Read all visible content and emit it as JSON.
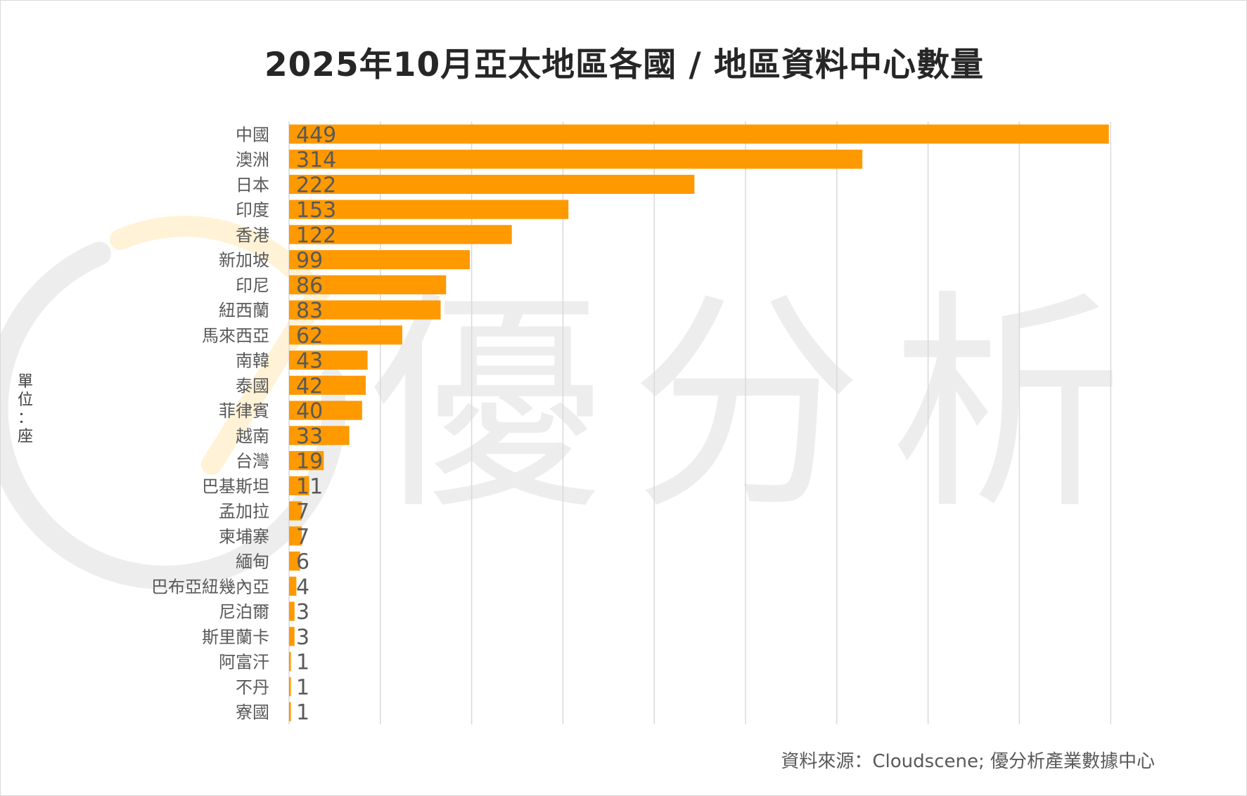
{
  "colors": {
    "bar": "#FF9900",
    "grid": "#d9d9d9",
    "label": "#595959",
    "watermark_gray": "#ededed",
    "watermark_orange": "#fff4dc"
  },
  "watermark": {
    "text": "優分析"
  },
  "y_axis_unit": "單位：座",
  "source": "資料來源：Cloudscene; 優分析產業數據中心",
  "chart_data": {
    "type": "bar",
    "orientation": "horizontal",
    "title": "2025年10月亞太地區各國 / 地區資料中心數量",
    "xlabel": "",
    "ylabel": "單位：座",
    "xlim": [
      0,
      495
    ],
    "grid": "vertical",
    "legend": "none",
    "categories": [
      "中國",
      "澳洲",
      "日本",
      "印度",
      "香港",
      "新加坡",
      "印尼",
      "紐西蘭",
      "馬來西亞",
      "南韓",
      "泰國",
      "菲律賓",
      "越南",
      "台灣",
      "巴基斯坦",
      "孟加拉",
      "柬埔寨",
      "緬甸",
      "巴布亞紐幾內亞",
      "尼泊爾",
      "斯里蘭卡",
      "阿富汗",
      "不丹",
      "寮國"
    ],
    "values": [
      449,
      314,
      222,
      153,
      122,
      99,
      86,
      83,
      62,
      43,
      42,
      40,
      33,
      19,
      11,
      7,
      7,
      6,
      4,
      3,
      3,
      1,
      1,
      1
    ]
  }
}
